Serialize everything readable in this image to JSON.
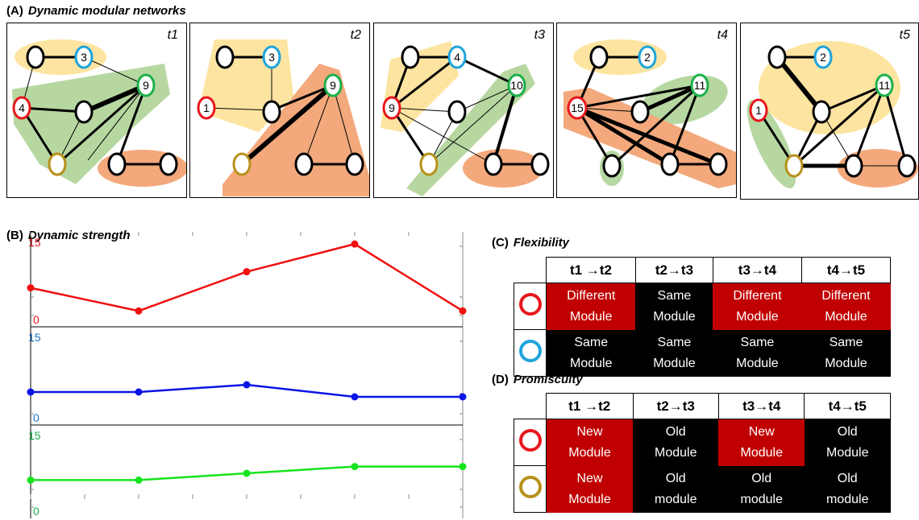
{
  "section_a": {
    "letter": "(A)",
    "title": "Dynamic modular networks"
  },
  "section_b": {
    "letter": "(B)",
    "title": "Dynamic strength"
  },
  "section_c": {
    "letter": "(C)",
    "title": "Flexibility"
  },
  "section_d": {
    "letter": "(D)",
    "title": "Promiscuity"
  },
  "colors": {
    "red": "#e8161b",
    "blue": "#1ea4dc",
    "green": "#1cb14b",
    "olive": "#b8901a",
    "cell_red": "#c00000",
    "cell_black": "#000000",
    "module_yellow": "#fde4a0",
    "module_green": "#b7d7a1",
    "module_orange": "#f3a97c"
  },
  "panels": [
    {
      "label": "t1",
      "nodes": [
        "3",
        "9",
        "4"
      ]
    },
    {
      "label": "t2",
      "nodes": [
        "3",
        "9",
        "1"
      ]
    },
    {
      "label": "t3",
      "nodes": [
        "4",
        "10",
        "9"
      ]
    },
    {
      "label": "t4",
      "nodes": [
        "2",
        "11",
        "15"
      ]
    },
    {
      "label": "t5",
      "nodes": [
        "2",
        "11",
        "1"
      ]
    }
  ],
  "chart_data": {
    "type": "line",
    "title": "Dynamic strength",
    "x": [
      1,
      2,
      3,
      4,
      5
    ],
    "series": [
      {
        "color": "#f01010",
        "values": [
          6,
          1,
          9.5,
          15.5,
          1
        ],
        "ymin_label": "0",
        "ymax_label": "15",
        "label_color": "#e8161b"
      },
      {
        "color": "#0a14e6",
        "values": [
          4.5,
          4.5,
          6,
          3.5,
          3.5
        ],
        "ymin_label": "0",
        "ymax_label": "15",
        "label_color": "#1e73be"
      },
      {
        "color": "#16e41c",
        "values": [
          6,
          6,
          7.5,
          9,
          9
        ],
        "ymin_label": "0",
        "ymax_label": "15",
        "label_color": "#1cb14b"
      }
    ],
    "ylim": [
      0,
      15
    ]
  },
  "flexibility": {
    "headers": [
      "t1 →t2",
      "t2→t3",
      "t3→t4",
      "t4→t5"
    ],
    "rows": [
      {
        "icon": "red",
        "cells": [
          {
            "l1": "Different",
            "l2": "Module",
            "bg": "red"
          },
          {
            "l1": "Same",
            "l2": "Module",
            "bg": "black"
          },
          {
            "l1": "Different",
            "l2": "Module",
            "bg": "red"
          },
          {
            "l1": "Different",
            "l2": "Module",
            "bg": "red"
          }
        ]
      },
      {
        "icon": "blue",
        "cells": [
          {
            "l1": "Same",
            "l2": "Module",
            "bg": "black"
          },
          {
            "l1": "Same",
            "l2": "Module",
            "bg": "black"
          },
          {
            "l1": "Same",
            "l2": "Module",
            "bg": "black"
          },
          {
            "l1": "Same",
            "l2": "Module",
            "bg": "black"
          }
        ]
      }
    ]
  },
  "promiscuity": {
    "headers": [
      "t1 →t2",
      "t2→t3",
      "t3→t4",
      "t4→t5"
    ],
    "rows": [
      {
        "icon": "red",
        "cells": [
          {
            "l1": "New",
            "l2": "Module",
            "bg": "red"
          },
          {
            "l1": "Old",
            "l2": "Module",
            "bg": "black"
          },
          {
            "l1": "New",
            "l2": "Module",
            "bg": "red"
          },
          {
            "l1": "Old",
            "l2": "Module",
            "bg": "black"
          }
        ]
      },
      {
        "icon": "olive",
        "cells": [
          {
            "l1": "New",
            "l2": "Module",
            "bg": "red"
          },
          {
            "l1": "Old",
            "l2": "module",
            "bg": "black"
          },
          {
            "l1": "Old",
            "l2": "module",
            "bg": "black"
          },
          {
            "l1": "Old",
            "l2": "module",
            "bg": "black"
          }
        ]
      }
    ]
  }
}
